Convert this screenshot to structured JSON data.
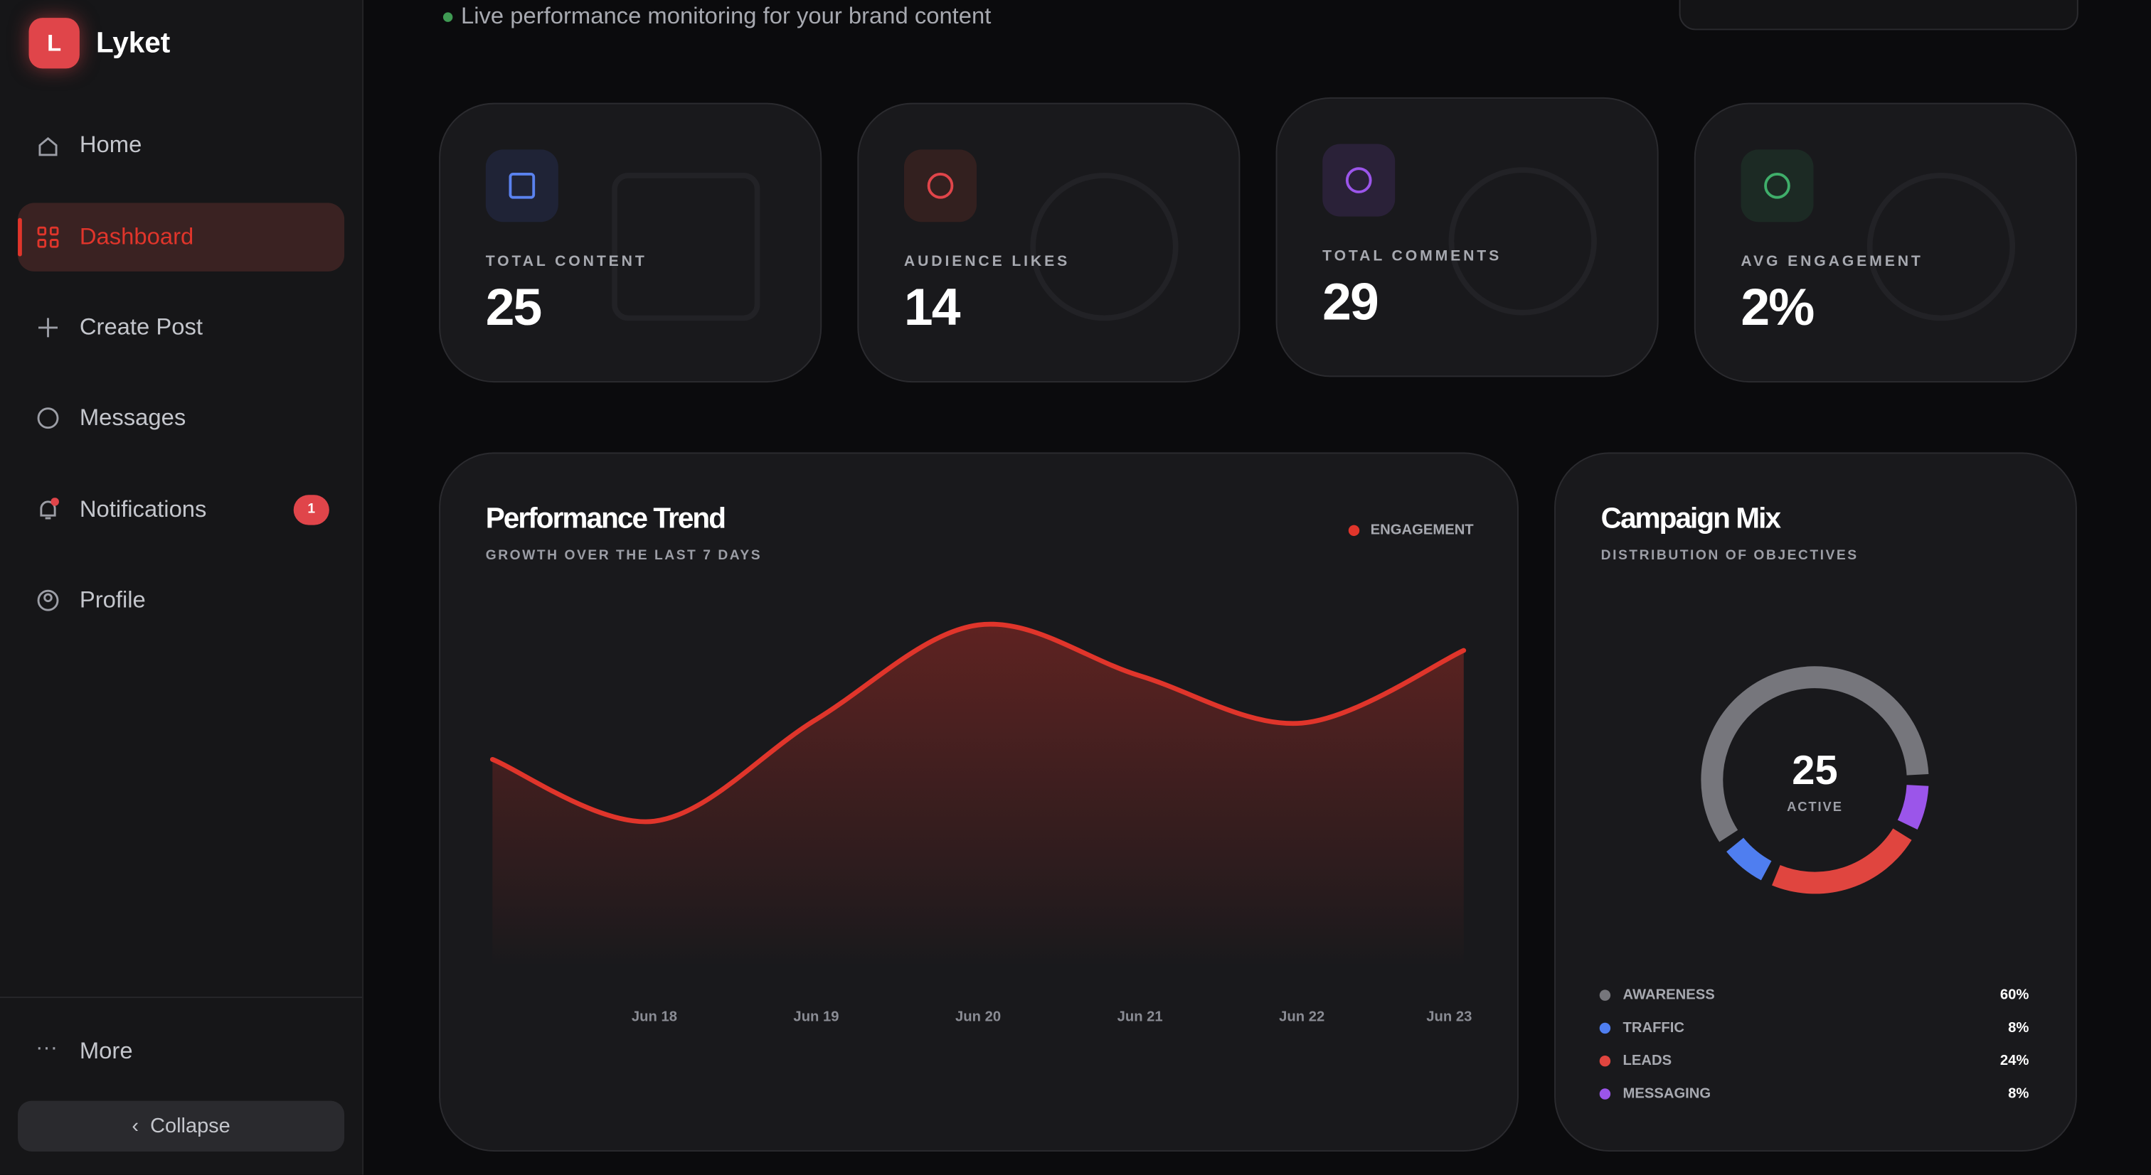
{
  "sidebar": {
    "brand_initial": "L",
    "brand": "Lyket",
    "nav": [
      "Home",
      "Dashboard",
      "Create Post",
      "Messages",
      "Notifications",
      "Profile"
    ],
    "notification_badge": "1",
    "more": "More",
    "collapse": "Collapse"
  },
  "header": {
    "subtitle": "Live performance monitoring for your brand content"
  },
  "stats": [
    {
      "label": "TOTAL CONTENT",
      "value": "25"
    },
    {
      "label": "AUDIENCE LIKES",
      "value": "14"
    },
    {
      "label": "TOTAL COMMENTS",
      "value": "29"
    },
    {
      "label": "AVG ENGAGEMENT",
      "value": "2%"
    }
  ],
  "chart_data": [
    {
      "type": "line",
      "title": "Performance Trend",
      "subtitle": "GROWTH OVER THE LAST 7 DAYS",
      "categories": [
        null,
        "Jun 18",
        "Jun 19",
        "Jun 20",
        "Jun 21",
        "Jun 22",
        "Jun 23"
      ],
      "series": [
        {
          "name": "ENGAGEMENT",
          "color": "#e0352b",
          "values": [
            5.7,
            4.0,
            6.8,
            9.4,
            8.0,
            6.7,
            8.7
          ]
        }
      ],
      "ylim": [
        0,
        10
      ]
    },
    {
      "type": "pie",
      "title": "Campaign Mix",
      "subtitle": "DISTRIBUTION OF OBJECTIVES",
      "center_value": "25",
      "center_label": "ACTIVE",
      "categories": [
        "AWARENESS",
        "TRAFFIC",
        "LEADS",
        "MESSAGING"
      ],
      "values": [
        60,
        8,
        24,
        8
      ],
      "value_labels": [
        "60%",
        "8%",
        "24%",
        "8%"
      ],
      "colors": [
        "#76767c",
        "#4f7ef0",
        "#e0453f",
        "#9b55ea"
      ]
    }
  ]
}
